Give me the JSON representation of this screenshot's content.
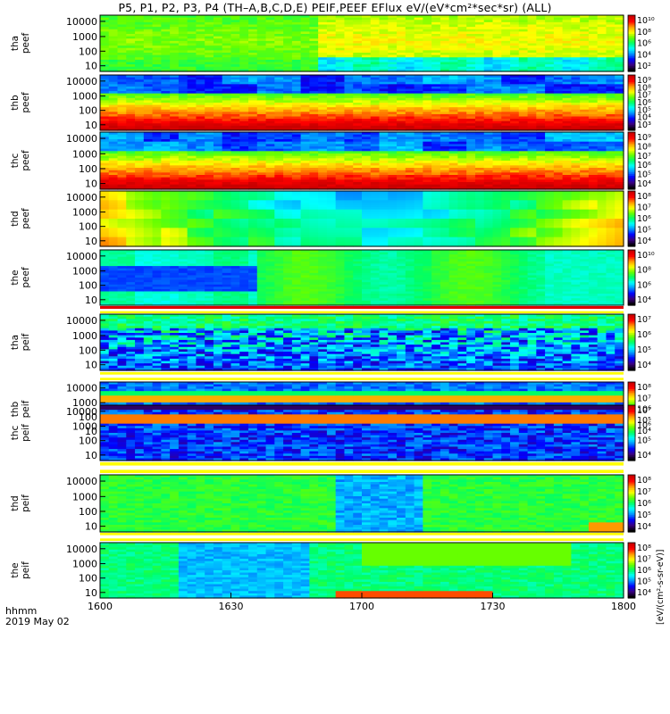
{
  "title": "P5, P1, P2, P3, P4 (TH–A,B,C,D,E) PEIF,PEEF EFlux eV/(eV*cm²*sec*sr) (ALL)",
  "colorbar_unit": "[eV/(cm²-s-sr-eV)]",
  "time_label": "hhmm",
  "date_label": "2019 May 02",
  "x_ticks": [
    "1600",
    "1630",
    "1700",
    "1730",
    "1800"
  ],
  "y_ticks": [
    "10000",
    "1000",
    "100",
    "10"
  ],
  "colors": {
    "scale": [
      "#000000",
      "#3a0080",
      "#0000ff",
      "#0090ff",
      "#00ffff",
      "#00ff66",
      "#66ff00",
      "#ffff00",
      "#ff9900",
      "#ff0000",
      "#c80000"
    ],
    "white_band": "#ffffff",
    "yellow_band": "#ffff00"
  },
  "chart_data": [
    {
      "type": "heatmap",
      "probe": "tha",
      "product": "peef",
      "x_range": [
        "1600",
        "1800"
      ],
      "y_scale": "log",
      "colorbar_ticks": [
        "10^10",
        "10^8",
        "10^6",
        "10^4",
        "10^2"
      ]
    },
    {
      "type": "heatmap",
      "probe": "thb",
      "product": "peef",
      "x_range": [
        "1600",
        "1800"
      ],
      "y_scale": "log",
      "colorbar_ticks": [
        "10^9",
        "10^8",
        "10^7",
        "10^6",
        "10^5",
        "10^4",
        "10^3"
      ]
    },
    {
      "type": "heatmap",
      "probe": "thc",
      "product": "peef",
      "x_range": [
        "1600",
        "1800"
      ],
      "y_scale": "log",
      "colorbar_ticks": [
        "10^9",
        "10^8",
        "10^7",
        "10^6",
        "10^5",
        "10^4"
      ]
    },
    {
      "type": "heatmap",
      "probe": "thd",
      "product": "peef",
      "x_range": [
        "1600",
        "1800"
      ],
      "y_scale": "log",
      "colorbar_ticks": [
        "10^8",
        "10^7",
        "10^6",
        "10^5",
        "10^4"
      ]
    },
    {
      "type": "heatmap",
      "probe": "the",
      "product": "peef",
      "x_range": [
        "1600",
        "1800"
      ],
      "y_scale": "log",
      "colorbar_ticks": [
        "10^10",
        "10^8",
        "10^6",
        "10^4"
      ]
    },
    {
      "type": "heatmap",
      "probe": "tha",
      "product": "peif",
      "x_range": [
        "1600",
        "1800"
      ],
      "y_scale": "log",
      "colorbar_ticks": [
        "10^7",
        "10^6",
        "10^5",
        "10^4"
      ]
    },
    {
      "type": "heatmap",
      "probe": "thb",
      "product": "peif",
      "x_range": [
        "1600",
        "1800"
      ],
      "y_scale": "log",
      "colorbar_ticks": [
        "10^8",
        "10^7",
        "10^6",
        "10^5",
        "10^4"
      ]
    },
    {
      "type": "heatmap",
      "probe": "thc",
      "product": "peif",
      "x_range": [
        "1600",
        "1800"
      ],
      "y_scale": "log",
      "colorbar_ticks": [
        "10^7",
        "10^6",
        "10^5",
        "10^4"
      ]
    },
    {
      "type": "heatmap",
      "probe": "thd",
      "product": "peif",
      "x_range": [
        "1600",
        "1800"
      ],
      "y_scale": "log",
      "colorbar_ticks": [
        "10^8",
        "10^7",
        "10^6",
        "10^5",
        "10^4"
      ]
    },
    {
      "type": "heatmap",
      "probe": "the",
      "product": "peif",
      "x_range": [
        "1600",
        "1800"
      ],
      "y_scale": "log",
      "colorbar_ticks": [
        "10^8",
        "10^7",
        "10^6",
        "10^5",
        "10^4"
      ]
    }
  ]
}
